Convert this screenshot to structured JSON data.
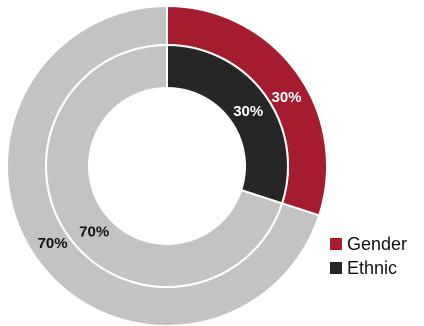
{
  "chart_data": {
    "type": "pie",
    "style": "nested-donut",
    "series": [
      {
        "name": "Gender",
        "ring": "outer",
        "values": [
          30,
          70
        ],
        "labels": [
          "30%",
          "70%"
        ],
        "colors": [
          "#A51C30",
          "#C3C3C3"
        ]
      },
      {
        "name": "Ethnic",
        "ring": "inner",
        "values": [
          30,
          70
        ],
        "labels": [
          "30%",
          "70%"
        ],
        "colors": [
          "#262626",
          "#C3C3C3"
        ]
      }
    ],
    "legend": {
      "position": "bottom-right",
      "items": [
        {
          "label": "Gender",
          "color": "#A51C30"
        },
        {
          "label": "Ethnic",
          "color": "#262626"
        }
      ]
    }
  }
}
